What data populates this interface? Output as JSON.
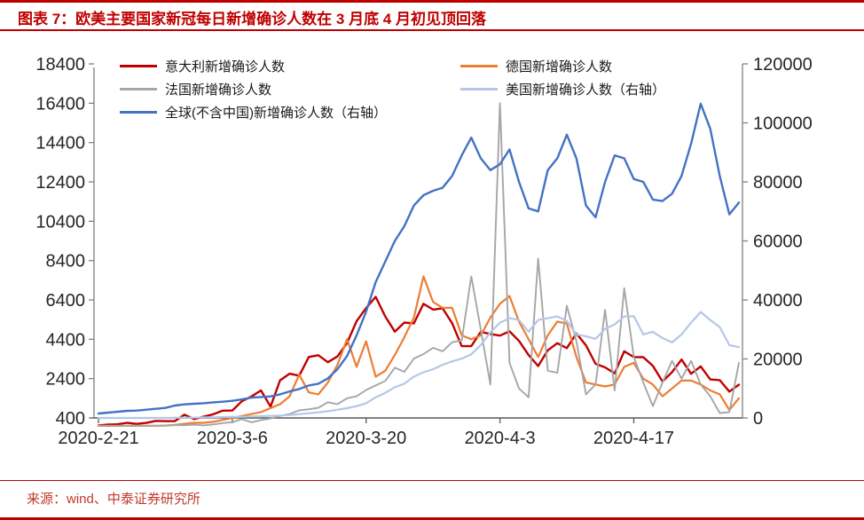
{
  "page": {
    "title": "图表 7：欧美主要国家新冠每日新增确诊人数在 3 月底 4 月初见顶回落",
    "source": "来源：wind、中泰证券研究所",
    "accent_color": "#c00000",
    "source_color": "#c0392b"
  },
  "chart_data": {
    "type": "line",
    "grid": false,
    "legend_position": "top-left, two columns",
    "x_tick_labels": [
      "2020-2-21",
      "2020-3-6",
      "2020-3-20",
      "2020-4-3",
      "2020-4-17"
    ],
    "left_axis": {
      "min": 400,
      "max": 18400,
      "step": 2000,
      "ticks": [
        400,
        2400,
        4400,
        6400,
        8400,
        10400,
        12400,
        14400,
        16400,
        18400
      ]
    },
    "right_axis": {
      "min": 0,
      "max": 120000,
      "step": 20000,
      "ticks": [
        0,
        20000,
        40000,
        60000,
        80000,
        100000,
        120000
      ]
    },
    "dates": [
      "2-21",
      "2-22",
      "2-23",
      "2-24",
      "2-25",
      "2-26",
      "2-27",
      "2-28",
      "2-29",
      "3-1",
      "3-2",
      "3-3",
      "3-4",
      "3-5",
      "3-6",
      "3-7",
      "3-8",
      "3-9",
      "3-10",
      "3-11",
      "3-12",
      "3-13",
      "3-14",
      "3-15",
      "3-16",
      "3-17",
      "3-18",
      "3-19",
      "3-20",
      "3-21",
      "3-22",
      "3-23",
      "3-24",
      "3-25",
      "3-26",
      "3-27",
      "3-28",
      "3-29",
      "3-30",
      "3-31",
      "4-1",
      "4-2",
      "4-3",
      "4-4",
      "4-5",
      "4-6",
      "4-7",
      "4-8",
      "4-9",
      "4-10",
      "4-11",
      "4-12",
      "4-13",
      "4-14",
      "4-15",
      "4-16",
      "4-17",
      "4-18",
      "4-19",
      "4-20",
      "4-21",
      "4-22",
      "4-23",
      "4-24",
      "4-25",
      "4-26",
      "4-27",
      "4-28"
    ],
    "series": [
      {
        "name": "意大利新增确诊人数",
        "color": "#c00000",
        "axis": "left",
        "values": [
          17,
          60,
          78,
          150,
          97,
          147,
          250,
          238,
          240,
          566,
          342,
          466,
          587,
          769,
          778,
          1247,
          1492,
          1797,
          977,
          2313,
          2651,
          2547,
          3497,
          3590,
          3233,
          3526,
          4207,
          5322,
          5986,
          6557,
          5560,
          4789,
          5249,
          5210,
          6203,
          5909,
          5974,
          5217,
          4050,
          4053,
          4782,
          4668,
          4585,
          4805,
          4316,
          3599,
          3039,
          3836,
          4204,
          3951,
          4694,
          4092,
          3153,
          2972,
          2667,
          3786,
          3493,
          3491,
          3047,
          2256,
          2729,
          3370,
          2646,
          3021,
          2357,
          2324,
          1739,
          2091
        ]
      },
      {
        "name": "德国新增确诊人数",
        "color": "#ed7d31",
        "axis": "left",
        "values": [
          0,
          0,
          0,
          0,
          1,
          3,
          5,
          10,
          50,
          100,
          150,
          150,
          200,
          300,
          400,
          500,
          600,
          700,
          900,
          1100,
          1500,
          2600,
          1700,
          1600,
          2200,
          3100,
          4400,
          3000,
          4300,
          2500,
          2800,
          3600,
          4500,
          5500,
          7600,
          6300,
          6000,
          6000,
          4600,
          4400,
          4600,
          5500,
          6200,
          6600,
          5300,
          4400,
          3500,
          4600,
          5300,
          5200,
          3500,
          2200,
          2100,
          2000,
          2100,
          3000,
          3200,
          2400,
          2100,
          1500,
          1900,
          2300,
          2300,
          2100,
          1800,
          1600,
          800,
          1400
        ]
      },
      {
        "name": "法国新增确诊人数",
        "color": "#a6a6a6",
        "axis": "left",
        "values": [
          0,
          0,
          0,
          0,
          0,
          2,
          5,
          20,
          40,
          30,
          60,
          20,
          70,
          140,
          190,
          340,
          180,
          290,
          370,
          500,
          600,
          790,
          840,
          920,
          1200,
          1100,
          1400,
          1500,
          1820,
          2050,
          2280,
          2960,
          2740,
          3420,
          3650,
          3970,
          3790,
          4250,
          4340,
          7600,
          4900,
          2100,
          16400,
          3200,
          1900,
          1450,
          8500,
          2800,
          2700,
          6100,
          4300,
          1600,
          2100,
          5900,
          1800,
          7000,
          3500,
          2200,
          1000,
          2200,
          3300,
          2400,
          3300,
          2100,
          1500,
          650,
          700,
          3200
        ]
      },
      {
        "name": "美国新增确诊人数（右轴）",
        "color": "#b4c7e7",
        "axis": "right",
        "values": [
          0,
          0,
          0,
          0,
          0,
          0,
          0,
          0,
          100,
          100,
          100,
          200,
          200,
          300,
          400,
          400,
          500,
          600,
          700,
          800,
          1000,
          1300,
          1600,
          1900,
          2300,
          2800,
          3300,
          4000,
          5000,
          7000,
          8500,
          10400,
          11600,
          14000,
          15500,
          16500,
          18000,
          19200,
          20100,
          21600,
          24700,
          29000,
          32300,
          33800,
          33200,
          29200,
          33200,
          33800,
          34400,
          32900,
          28300,
          27700,
          26800,
          30200,
          31700,
          34400,
          34500,
          28300,
          29200,
          27100,
          25600,
          28300,
          32300,
          35900,
          33200,
          30800,
          24700,
          24000
        ]
      },
      {
        "name": "全球(不含中国)新增确诊人数（右轴）",
        "color": "#4472c4",
        "axis": "right",
        "values": [
          1500,
          1800,
          2100,
          2400,
          2500,
          2800,
          3100,
          3400,
          4200,
          4600,
          4800,
          5000,
          5300,
          5500,
          5800,
          6300,
          6900,
          7100,
          7300,
          8000,
          9000,
          9800,
          11000,
          11600,
          13400,
          16500,
          21000,
          28000,
          36000,
          46000,
          53000,
          60000,
          65000,
          72000,
          75500,
          77000,
          78000,
          82000,
          89000,
          95000,
          88000,
          84000,
          86000,
          91000,
          80000,
          71000,
          70000,
          84000,
          88000,
          96000,
          88000,
          72000,
          68000,
          80000,
          89000,
          88000,
          81000,
          80000,
          74000,
          73500,
          76000,
          82000,
          93000,
          106500,
          98000,
          82000,
          69000,
          73000
        ]
      }
    ]
  }
}
